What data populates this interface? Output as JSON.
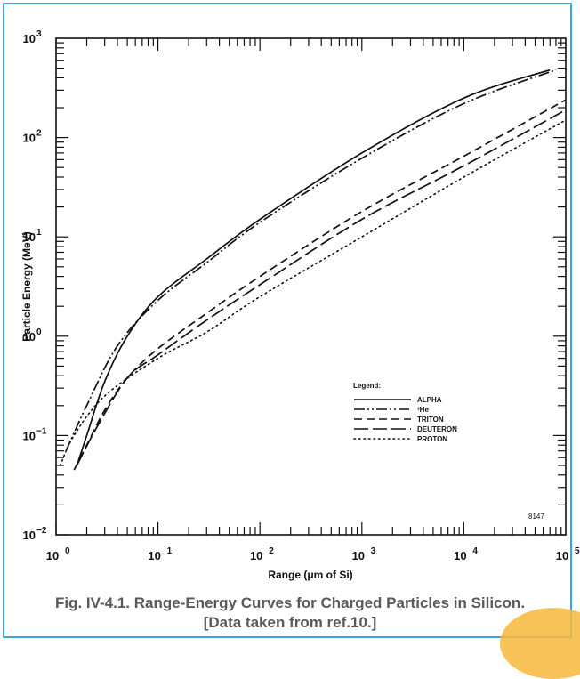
{
  "caption": {
    "line1": "Fig. IV-4.1.  Range-Energy Curves for Charged Particles in Silicon.",
    "line2": "[Data taken from ref.10.]"
  },
  "chart_data": {
    "type": "line",
    "title": "",
    "xlabel": "Range (μm of Si)",
    "ylabel": "Particle Energy (MeV)",
    "xscale": "log",
    "yscale": "log",
    "xlim": [
      1,
      100000
    ],
    "ylim": [
      0.01,
      1000
    ],
    "x_ticks": [
      {
        "base": "10",
        "exp": "0"
      },
      {
        "base": "10",
        "exp": "1"
      },
      {
        "base": "10",
        "exp": "2"
      },
      {
        "base": "10",
        "exp": "3"
      },
      {
        "base": "10",
        "exp": "4"
      },
      {
        "base": "10",
        "exp": "5"
      }
    ],
    "y_ticks": [
      {
        "base": "10 ",
        "exp": "−2"
      },
      {
        "base": "10",
        "exp": "−1"
      },
      {
        "base": "10",
        "exp": "0"
      },
      {
        "base": "10",
        "exp": "1"
      },
      {
        "base": "10",
        "exp": "2"
      },
      {
        "base": "10 ",
        "exp": "3"
      }
    ],
    "grid": false,
    "annotation": "8147",
    "legend_title": "Legend:",
    "legend_position": "lower-right",
    "series": [
      {
        "name": "ALPHA",
        "style": "solid",
        "points": [
          [
            1.6,
            0.05
          ],
          [
            2,
            0.1
          ],
          [
            3,
            0.35
          ],
          [
            5,
            1.0
          ],
          [
            10,
            2.5
          ],
          [
            30,
            6.0
          ],
          [
            100,
            15
          ],
          [
            1000,
            70
          ],
          [
            10000,
            250
          ],
          [
            70000,
            480
          ]
        ]
      },
      {
        "name": "³He",
        "style": "dashdotdot",
        "points": [
          [
            1.25,
            0.07
          ],
          [
            2,
            0.2
          ],
          [
            4,
            0.8
          ],
          [
            10,
            2.3
          ],
          [
            30,
            5.5
          ],
          [
            100,
            14
          ],
          [
            1000,
            62
          ],
          [
            10000,
            220
          ],
          [
            80000,
            480
          ]
        ]
      },
      {
        "name": "TRITON",
        "style": "dashed",
        "points": [
          [
            1.5,
            0.045
          ],
          [
            2,
            0.08
          ],
          [
            3,
            0.18
          ],
          [
            5,
            0.38
          ],
          [
            10,
            0.75
          ],
          [
            30,
            1.7
          ],
          [
            100,
            4.0
          ],
          [
            1000,
            18
          ],
          [
            10000,
            65
          ],
          [
            100000,
            240
          ]
        ]
      },
      {
        "name": "DEUTERON",
        "style": "longdash",
        "points": [
          [
            1.6,
            0.05
          ],
          [
            2.5,
            0.12
          ],
          [
            5,
            0.38
          ],
          [
            10,
            0.65
          ],
          [
            30,
            1.45
          ],
          [
            100,
            3.3
          ],
          [
            1000,
            15
          ],
          [
            10000,
            52
          ],
          [
            100000,
            190
          ]
        ]
      },
      {
        "name": "PROTON",
        "style": "dotted",
        "points": [
          [
            1.1,
            0.05
          ],
          [
            1.5,
            0.1
          ],
          [
            3,
            0.25
          ],
          [
            10,
            0.6
          ],
          [
            30,
            1.1
          ],
          [
            100,
            2.5
          ],
          [
            1000,
            10
          ],
          [
            10000,
            40
          ],
          [
            100000,
            150
          ]
        ]
      }
    ]
  }
}
